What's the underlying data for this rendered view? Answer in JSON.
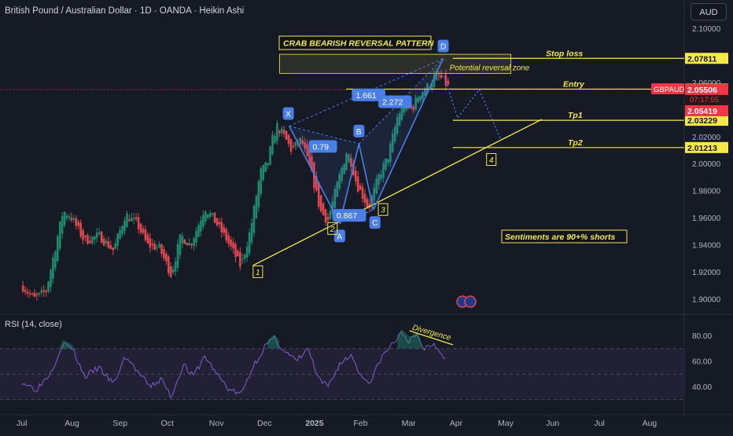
{
  "header": {
    "title": "British Pound / Australian Dollar · 1D · OANDA · Heikin Ashi",
    "currency_button": "AUD"
  },
  "colors": {
    "background": "#161a25",
    "bull": "#1f8a6c",
    "bear": "#e0474f",
    "annotation": "#f5e84a",
    "pattern": "#4a7fe8",
    "rsi_line": "#7e57c2",
    "rsi_band": "#2b2440",
    "price_tag": "#f23645"
  },
  "chart_data": [
    {
      "type": "candlestick",
      "symbol": "GBPAUD",
      "x_ticks": [
        "Jul",
        "Aug",
        "Sep",
        "Oct",
        "Nov",
        "Dec",
        "2025",
        "Feb",
        "Mar",
        "Apr",
        "May",
        "Jun",
        "Jul",
        "Aug"
      ],
      "y_ticks": [
        "1.90000",
        "1.92000",
        "1.94000",
        "1.96000",
        "1.98000",
        "2.00000",
        "2.02000",
        "2.04000",
        "2.06000",
        "2.08000",
        "2.10000"
      ],
      "ylim": [
        1.89,
        2.105
      ],
      "price_series": [
        {
          "t": 0,
          "p": 1.91
        },
        {
          "t": 0.25,
          "p": 1.9
        },
        {
          "t": 0.5,
          "p": 1.906
        },
        {
          "t": 0.85,
          "p": 1.965
        },
        {
          "t": 1.0,
          "p": 1.962
        },
        {
          "t": 1.3,
          "p": 1.943
        },
        {
          "t": 1.6,
          "p": 1.947
        },
        {
          "t": 1.9,
          "p": 1.936
        },
        {
          "t": 2.15,
          "p": 1.963
        },
        {
          "t": 2.4,
          "p": 1.955
        },
        {
          "t": 2.6,
          "p": 1.94
        },
        {
          "t": 2.85,
          "p": 1.938
        },
        {
          "t": 3.1,
          "p": 1.918
        },
        {
          "t": 3.3,
          "p": 1.947
        },
        {
          "t": 3.5,
          "p": 1.94
        },
        {
          "t": 3.8,
          "p": 1.968
        },
        {
          "t": 4.0,
          "p": 1.958
        },
        {
          "t": 4.25,
          "p": 1.944
        },
        {
          "t": 4.55,
          "p": 1.924
        },
        {
          "t": 4.75,
          "p": 1.952
        },
        {
          "t": 4.95,
          "p": 1.994
        },
        {
          "t": 5.1,
          "p": 2.0
        },
        {
          "t": 5.2,
          "p": 2.018
        },
        {
          "t": 5.3,
          "p": 2.028
        },
        {
          "t": 5.45,
          "p": 2.02
        },
        {
          "t": 5.6,
          "p": 2.01
        },
        {
          "t": 5.8,
          "p": 2.018
        },
        {
          "t": 6.05,
          "p": 1.988
        },
        {
          "t": 6.2,
          "p": 1.965
        },
        {
          "t": 6.35,
          "p": 1.958
        },
        {
          "t": 6.55,
          "p": 1.985
        },
        {
          "t": 6.75,
          "p": 2.01
        },
        {
          "t": 6.85,
          "p": 2.0
        },
        {
          "t": 6.95,
          "p": 1.985
        },
        {
          "t": 7.1,
          "p": 1.975
        },
        {
          "t": 7.2,
          "p": 1.967
        },
        {
          "t": 7.4,
          "p": 1.99
        },
        {
          "t": 7.6,
          "p": 2.005
        },
        {
          "t": 7.8,
          "p": 2.035
        },
        {
          "t": 7.95,
          "p": 2.045
        },
        {
          "t": 8.1,
          "p": 2.04
        },
        {
          "t": 8.25,
          "p": 2.052
        },
        {
          "t": 8.45,
          "p": 2.058
        },
        {
          "t": 8.6,
          "p": 2.066
        },
        {
          "t": 8.75,
          "p": 2.062
        },
        {
          "t": 8.9,
          "p": 2.055
        }
      ],
      "pattern": {
        "name": "CRAB BEARISH REVERSAL PATTERN",
        "points": [
          {
            "label": "X",
            "t": 5.55,
            "p": 2.028
          },
          {
            "label": "A",
            "t": 6.6,
            "p": 1.956
          },
          {
            "label": "B",
            "t": 7.0,
            "p": 2.015
          },
          {
            "label": "C",
            "t": 7.3,
            "p": 1.966
          },
          {
            "label": "D",
            "t": 8.75,
            "p": 2.078
          }
        ],
        "ratios": [
          "0.79",
          "1.661",
          "0.867",
          "2.272"
        ]
      },
      "levels": [
        {
          "label": "Stop loss",
          "price": "2.07811",
          "value": 2.07811
        },
        {
          "label": "Entry",
          "price": "2.05534",
          "value": 2.05534
        },
        {
          "label": "Tp1",
          "price": "2.03229",
          "value": 2.03229
        },
        {
          "label": "Tp2",
          "price": "2.01213",
          "value": 2.01213
        }
      ],
      "current_price": {
        "symbol": "GBPAUD",
        "price": "2.05506",
        "countdown": "07:17:55",
        "low": "2.05419"
      },
      "annotations": {
        "zone": "Potential reversal zone",
        "sentiment": "Sentiments are 90+% shorts",
        "wave_labels": [
          "1",
          "2",
          "3",
          "4"
        ]
      }
    },
    {
      "type": "line",
      "title": "RSI (14, close)",
      "y_ticks": [
        "40.00",
        "60.00",
        "80.00"
      ],
      "ylim": [
        28,
        92
      ],
      "band": [
        30,
        70
      ],
      "divergence_label": "Divergence",
      "series": [
        {
          "t": 0,
          "v": 44
        },
        {
          "t": 0.3,
          "v": 38
        },
        {
          "t": 0.6,
          "v": 52
        },
        {
          "t": 0.85,
          "v": 74
        },
        {
          "t": 1.05,
          "v": 70
        },
        {
          "t": 1.3,
          "v": 48
        },
        {
          "t": 1.6,
          "v": 55
        },
        {
          "t": 1.9,
          "v": 42
        },
        {
          "t": 2.15,
          "v": 64
        },
        {
          "t": 2.4,
          "v": 52
        },
        {
          "t": 2.65,
          "v": 40
        },
        {
          "t": 2.9,
          "v": 46
        },
        {
          "t": 3.1,
          "v": 32
        },
        {
          "t": 3.35,
          "v": 58
        },
        {
          "t": 3.55,
          "v": 48
        },
        {
          "t": 3.8,
          "v": 64
        },
        {
          "t": 4.05,
          "v": 50
        },
        {
          "t": 4.3,
          "v": 38
        },
        {
          "t": 4.55,
          "v": 34
        },
        {
          "t": 4.8,
          "v": 56
        },
        {
          "t": 5.05,
          "v": 72
        },
        {
          "t": 5.25,
          "v": 78
        },
        {
          "t": 5.45,
          "v": 68
        },
        {
          "t": 5.7,
          "v": 60
        },
        {
          "t": 5.95,
          "v": 70
        },
        {
          "t": 6.15,
          "v": 46
        },
        {
          "t": 6.35,
          "v": 40
        },
        {
          "t": 6.6,
          "v": 58
        },
        {
          "t": 6.85,
          "v": 65
        },
        {
          "t": 7.05,
          "v": 48
        },
        {
          "t": 7.25,
          "v": 44
        },
        {
          "t": 7.45,
          "v": 62
        },
        {
          "t": 7.7,
          "v": 74
        },
        {
          "t": 7.9,
          "v": 82
        },
        {
          "t": 8.05,
          "v": 76
        },
        {
          "t": 8.2,
          "v": 80
        },
        {
          "t": 8.35,
          "v": 70
        },
        {
          "t": 8.55,
          "v": 74
        },
        {
          "t": 8.7,
          "v": 68
        },
        {
          "t": 8.8,
          "v": 62
        }
      ]
    }
  ]
}
